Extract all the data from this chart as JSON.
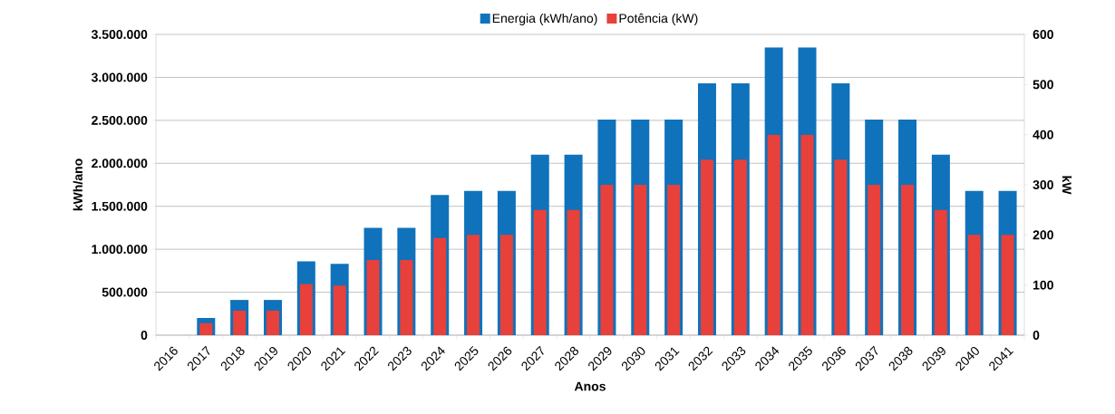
{
  "chart_data": {
    "type": "bar",
    "categories": [
      "2016",
      "2017",
      "2018",
      "2019",
      "2020",
      "2021",
      "2022",
      "2023",
      "2024",
      "2025",
      "2026",
      "2027",
      "2028",
      "2029",
      "2030",
      "2031",
      "2032",
      "2033",
      "2034",
      "2035",
      "2036",
      "2037",
      "2038",
      "2039",
      "2040",
      "2041"
    ],
    "series": [
      {
        "name": "Energia (kWh/ano)",
        "color": "#0f72bb",
        "values": [
          0,
          200000,
          410000,
          410000,
          860000,
          830000,
          1250000,
          1250000,
          1630000,
          1680000,
          1680000,
          2100000,
          2100000,
          2510000,
          2510000,
          2510000,
          2930000,
          2930000,
          3350000,
          3350000,
          2930000,
          2510000,
          2510000,
          2100000,
          1680000,
          1680000
        ]
      },
      {
        "name": "Potência (kW)",
        "color": "#e8403a",
        "axis": "y2",
        "values": [
          0,
          24,
          49,
          49,
          102,
          99,
          150,
          150,
          194,
          200,
          200,
          250,
          250,
          300,
          300,
          300,
          350,
          350,
          400,
          400,
          350,
          300,
          300,
          250,
          200,
          200
        ]
      }
    ],
    "xlabel": "Anos",
    "ylabel": "kWh/ano",
    "y2label": "kW",
    "ylim": [
      0,
      3500000
    ],
    "yticks": [
      0,
      {
        "value": 500000,
        "label": "500.000"
      },
      {
        "value": 1000000,
        "label": "1.000.000"
      },
      {
        "value": 1500000,
        "label": "1.500.000"
      },
      {
        "value": 2000000,
        "label": "2.000.000"
      },
      {
        "value": 2500000,
        "label": "2.500.000"
      },
      {
        "value": 3000000,
        "label": "3.000.000"
      },
      {
        "value": 3500000,
        "label": "3.500.000"
      }
    ],
    "y2lim": [
      0,
      600
    ],
    "y2ticks": [
      0,
      100,
      200,
      300,
      400,
      500,
      600
    ],
    "grid": "y",
    "legend": "top"
  }
}
